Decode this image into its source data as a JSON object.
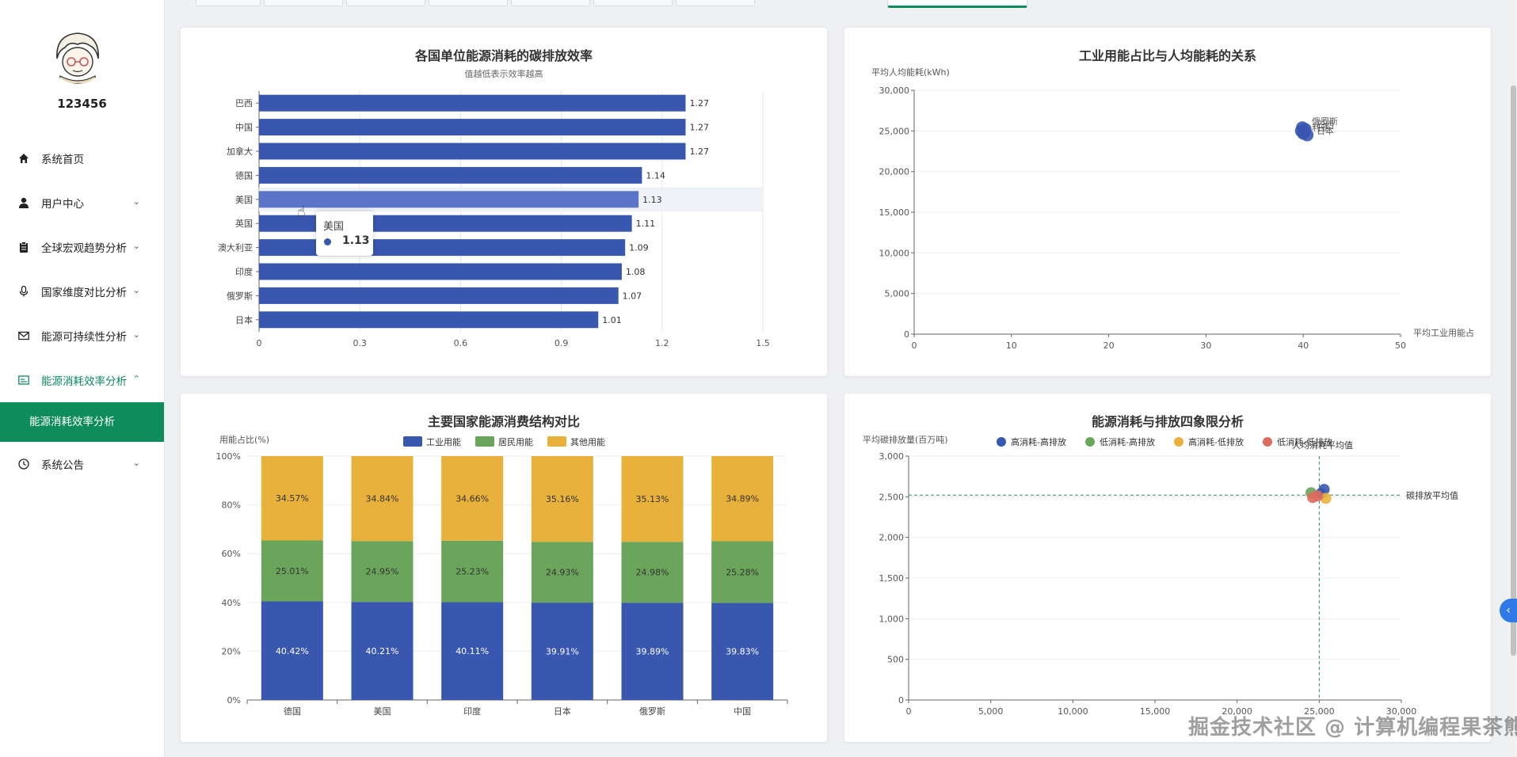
{
  "user": {
    "name": "123456"
  },
  "menu": [
    {
      "label": "系统首页",
      "icon": "home-icon",
      "chevron": false
    },
    {
      "label": "用户中心",
      "icon": "user-icon",
      "chevron": true
    },
    {
      "label": "全球宏观趋势分析",
      "icon": "clipboard-icon",
      "chevron": true
    },
    {
      "label": "国家维度对比分析",
      "icon": "microphone-icon",
      "chevron": true
    },
    {
      "label": "能源可持续性分析",
      "icon": "mail-icon",
      "chevron": true
    },
    {
      "label": "能源消耗效率分析",
      "icon": "card-icon",
      "chevron": true,
      "expanded": true
    },
    {
      "label": "系统公告",
      "icon": "clock-icon",
      "chevron": true
    }
  ],
  "submenu": {
    "active_label": "能源消耗效率分析"
  },
  "colors": {
    "blue": "#3a57b0",
    "green": "#6ba55b",
    "yellow": "#e8b13c",
    "red": "#dc6b5e",
    "accent": "#0f8c5c"
  },
  "tooltip": {
    "name": "美国",
    "value": "1.13"
  },
  "watermark": "掘金技术社区 @ 计算机编程果茶熊",
  "chart_data": [
    {
      "type": "bar",
      "orientation": "horizontal",
      "title": "各国单位能源消耗的碳排放效率",
      "subtitle": "值越低表示效率越高",
      "xlabel": "",
      "categories": [
        "巴西",
        "中国",
        "加拿大",
        "德国",
        "美国",
        "英国",
        "澳大利亚",
        "印度",
        "俄罗斯",
        "日本"
      ],
      "values": [
        1.27,
        1.27,
        1.27,
        1.14,
        1.13,
        1.11,
        1.09,
        1.08,
        1.07,
        1.01
      ],
      "value_labels": [
        "1.27",
        "1.27",
        "1.27",
        "1.14",
        "1.13",
        "1.11",
        "1.09",
        "1.08",
        "1.07",
        "1.01"
      ],
      "xlim": [
        0,
        1.5
      ],
      "xticks": [
        "0",
        "0.3",
        "0.6",
        "0.9",
        "1.2",
        "1.5"
      ],
      "highlight": "美国"
    },
    {
      "type": "scatter",
      "title": "工业用能占比与人均能耗的关系",
      "ylabel": "平均人均能耗(kWh)",
      "xlabel": "平均工业用能占",
      "xlim": [
        0,
        50
      ],
      "ylim": [
        0,
        30000
      ],
      "xticks": [
        "0",
        "10",
        "20",
        "30",
        "40",
        "50"
      ],
      "yticks": [
        "0",
        "5,000",
        "10,000",
        "15,000",
        "20,000",
        "25,000",
        "30,000"
      ],
      "points": [
        {
          "x": 39.9,
          "y": 25400
        },
        {
          "x": 40.2,
          "y": 25200
        },
        {
          "x": 40.1,
          "y": 24900
        },
        {
          "x": 40.4,
          "y": 24500
        },
        {
          "x": 39.8,
          "y": 25000
        },
        {
          "x": 40.0,
          "y": 24700
        }
      ],
      "point_labels": [
        "俄罗斯",
        "巴西",
        "利亚",
        "日本"
      ]
    },
    {
      "type": "bar",
      "stacked": true,
      "title": "主要国家能源消费结构对比",
      "ylabel": "用能占比(%)",
      "categories": [
        "德国",
        "美国",
        "印度",
        "日本",
        "俄罗斯",
        "中国"
      ],
      "yticks": [
        "0%",
        "20%",
        "40%",
        "60%",
        "80%",
        "100%"
      ],
      "ylim": [
        0,
        100
      ],
      "series": [
        {
          "name": "工业用能",
          "values": [
            40.42,
            40.21,
            40.11,
            39.91,
            39.89,
            39.83
          ],
          "labels": [
            "40.42%",
            "40.21%",
            "40.11%",
            "39.91%",
            "39.89%",
            "39.83%"
          ]
        },
        {
          "name": "居民用能",
          "values": [
            25.01,
            24.95,
            25.23,
            24.93,
            24.98,
            25.28
          ],
          "labels": [
            "25.01%",
            "24.95%",
            "25.23%",
            "24.93%",
            "24.98%",
            "25.28%"
          ]
        },
        {
          "name": "其他用能",
          "values": [
            34.57,
            34.84,
            34.66,
            35.16,
            35.13,
            34.89
          ],
          "labels": [
            "34.57%",
            "34.84%",
            "34.66%",
            "35.16%",
            "35.13%",
            "34.89%"
          ]
        }
      ]
    },
    {
      "type": "scatter",
      "title": "能源消耗与排放四象限分析",
      "ylabel": "平均碳排放量(百万吨)",
      "xlim": [
        0,
        30000
      ],
      "ylim": [
        0,
        3000
      ],
      "xticks": [
        "0",
        "5,000",
        "10,000",
        "15,000",
        "20,000",
        "25,000",
        "30,000"
      ],
      "yticks": [
        "0",
        "500",
        "1,000",
        "1,500",
        "2,000",
        "2,500",
        "3,000"
      ],
      "legend": [
        "高消耗-高排放",
        "低消耗-高排放",
        "高消耗-低排放",
        "低消耗-低排放"
      ],
      "reference_lines": {
        "x_label": "人均消耗平均值",
        "y_label": "碳排放平均值",
        "x": 25000,
        "y": 2520
      },
      "series": [
        {
          "name": "高消耗-高排放",
          "points": [
            {
              "x": 25300,
              "y": 2590
            },
            {
              "x": 25100,
              "y": 2540
            }
          ]
        },
        {
          "name": "低消耗-高排放",
          "points": [
            {
              "x": 24500,
              "y": 2550
            }
          ]
        },
        {
          "name": "高消耗-低排放",
          "points": [
            {
              "x": 25400,
              "y": 2480
            }
          ]
        },
        {
          "name": "低消耗-低排放",
          "points": [
            {
              "x": 24600,
              "y": 2490
            },
            {
              "x": 24900,
              "y": 2510
            }
          ]
        }
      ]
    }
  ]
}
